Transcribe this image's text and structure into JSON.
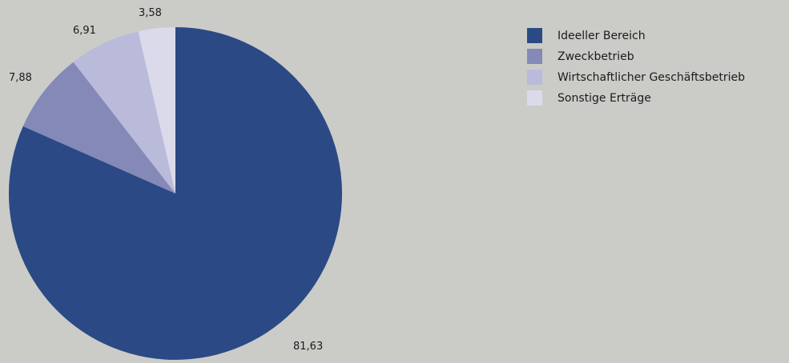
{
  "chart_data": {
    "type": "pie",
    "start_angle_deg": 0,
    "direction": "clockwise",
    "legend_position": "top-right",
    "slices": [
      {
        "label": "Ideeller Bereich",
        "value": 81.63,
        "value_label": "81,63",
        "color": "#2b4985"
      },
      {
        "label": "Zweckbetrieb",
        "value": 7.88,
        "value_label": "7,88",
        "color": "#8589b8"
      },
      {
        "label": "Wirtschaftlicher Geschäftsbetrieb",
        "value": 6.91,
        "value_label": "6,91",
        "color": "#babbdb"
      },
      {
        "label": "Sonstige Erträge",
        "value": 3.58,
        "value_label": "3,58",
        "color": "#dadaeb"
      }
    ]
  }
}
